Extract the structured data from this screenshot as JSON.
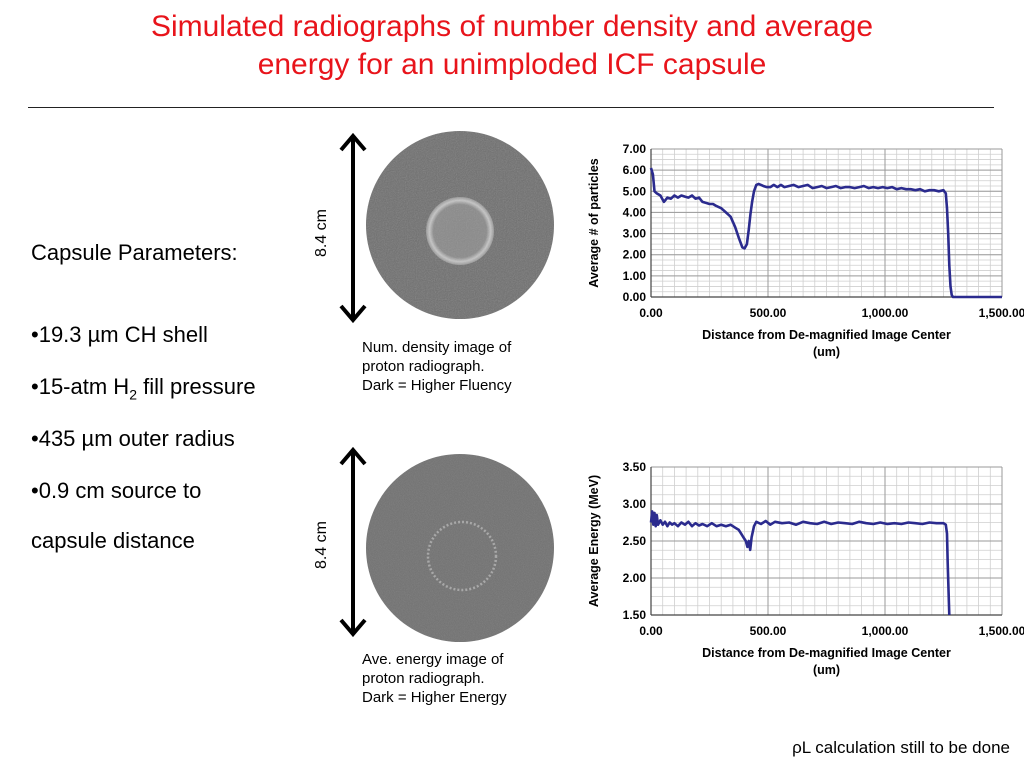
{
  "slide": {
    "title_line1": "Simulated radiographs of number density and average",
    "title_line2": "energy for an unimploded ICF capsule",
    "footer_note": "ρL calculation still to be done",
    "colors": {
      "title": "#e8141b",
      "series": "#2b2b8e"
    }
  },
  "params": {
    "heading": "Capsule Parameters:",
    "item1": "•19.3 µm CH shell",
    "item2_pre": "•15-atm H",
    "item2_sub": "2",
    "item2_post": " fill pressure",
    "item3": "•435 µm outer radius",
    "item4_line1": "•0.9 cm source to",
    "item4_line2": "capsule distance"
  },
  "images": {
    "density": {
      "scale_label": "8.4 cm",
      "caption_line1": "Num. density image of",
      "caption_line2": "proton radiograph.",
      "caption_line3": "Dark = Higher Fluency"
    },
    "energy": {
      "scale_label": "8.4 cm",
      "caption_line1": "Ave. energy image of",
      "caption_line2": "proton radiograph.",
      "caption_line3": "Dark = Higher Energy"
    }
  },
  "chart_data": [
    {
      "type": "line",
      "title": "",
      "ylabel": "Average # of particles",
      "xlabel_line1": "Distance from De-magnified Image Center",
      "xlabel_line2": "(um)",
      "xlim": [
        0,
        1500
      ],
      "ylim": [
        0,
        7
      ],
      "xticks": [
        0,
        500,
        1000,
        1500
      ],
      "xtick_labels": [
        "0.00",
        "500.00",
        "1,000.00",
        "1,500.00"
      ],
      "yticks": [
        0,
        1,
        2,
        3,
        4,
        5,
        6,
        7
      ],
      "ytick_labels": [
        "0.00",
        "1.00",
        "2.00",
        "3.00",
        "4.00",
        "5.00",
        "6.00",
        "7.00"
      ],
      "grid": true,
      "series": [
        {
          "x": [
            0,
            8,
            15,
            25,
            40,
            55,
            70,
            85,
            100,
            115,
            130,
            145,
            160,
            175,
            190,
            205,
            220,
            235,
            250,
            265,
            280,
            300,
            320,
            340,
            360,
            375,
            390,
            400,
            410,
            418,
            425,
            432,
            440,
            450,
            460,
            470,
            480,
            495,
            510,
            525,
            540,
            555,
            570,
            590,
            610,
            630,
            650,
            670,
            690,
            710,
            730,
            750,
            770,
            790,
            810,
            830,
            850,
            870,
            890,
            910,
            930,
            950,
            970,
            990,
            1010,
            1030,
            1050,
            1070,
            1090,
            1110,
            1130,
            1150,
            1170,
            1190,
            1210,
            1230,
            1250,
            1260,
            1265,
            1270,
            1275,
            1280,
            1285,
            1290,
            1300,
            1350,
            1400,
            1450,
            1500
          ],
          "y": [
            6.1,
            5.8,
            5.0,
            4.9,
            4.8,
            4.5,
            4.7,
            4.65,
            4.8,
            4.7,
            4.8,
            4.75,
            4.7,
            4.8,
            4.65,
            4.7,
            4.5,
            4.45,
            4.4,
            4.4,
            4.3,
            4.2,
            4.0,
            3.8,
            3.3,
            2.8,
            2.35,
            2.3,
            2.5,
            3.2,
            3.9,
            4.5,
            5.0,
            5.3,
            5.35,
            5.3,
            5.25,
            5.2,
            5.2,
            5.3,
            5.2,
            5.3,
            5.2,
            5.25,
            5.3,
            5.2,
            5.25,
            5.3,
            5.15,
            5.2,
            5.25,
            5.15,
            5.2,
            5.25,
            5.15,
            5.2,
            5.2,
            5.15,
            5.2,
            5.25,
            5.15,
            5.2,
            5.15,
            5.2,
            5.15,
            5.2,
            5.1,
            5.15,
            5.1,
            5.1,
            5.05,
            5.1,
            5.0,
            5.05,
            5.05,
            5.0,
            5.05,
            4.9,
            4.2,
            3.0,
            1.5,
            0.5,
            0.1,
            0.0,
            0.0,
            0.0,
            0.0,
            0.0,
            0.0
          ]
        }
      ]
    },
    {
      "type": "line",
      "title": "",
      "ylabel": "Average Energy (MeV)",
      "xlabel_line1": "Distance from De-magnified Image Center",
      "xlabel_line2": "(um)",
      "xlim": [
        0,
        1500
      ],
      "ylim": [
        1.5,
        3.5
      ],
      "xticks": [
        0,
        500,
        1000,
        1500
      ],
      "xtick_labels": [
        "0.00",
        "500.00",
        "1,000.00",
        "1,500.00"
      ],
      "yticks": [
        1.5,
        2.0,
        2.5,
        3.0,
        3.5
      ],
      "ytick_labels": [
        "1.50",
        "2.00",
        "2.50",
        "3.00",
        "3.50"
      ],
      "grid": true,
      "series": [
        {
          "x": [
            0,
            5,
            10,
            15,
            20,
            25,
            30,
            40,
            50,
            60,
            70,
            80,
            90,
            100,
            115,
            130,
            145,
            160,
            175,
            190,
            205,
            220,
            240,
            260,
            280,
            300,
            320,
            340,
            360,
            375,
            385,
            395,
            405,
            412,
            418,
            424,
            430,
            440,
            450,
            470,
            490,
            510,
            530,
            560,
            590,
            620,
            650,
            680,
            710,
            740,
            770,
            800,
            830,
            860,
            890,
            920,
            950,
            980,
            1010,
            1040,
            1070,
            1100,
            1130,
            1160,
            1190,
            1220,
            1250,
            1260,
            1265,
            1268,
            1272,
            1275
          ],
          "y": [
            2.75,
            2.9,
            2.72,
            2.88,
            2.7,
            2.85,
            2.72,
            2.78,
            2.72,
            2.76,
            2.7,
            2.75,
            2.72,
            2.74,
            2.7,
            2.75,
            2.72,
            2.76,
            2.7,
            2.74,
            2.71,
            2.73,
            2.7,
            2.74,
            2.7,
            2.72,
            2.7,
            2.72,
            2.68,
            2.65,
            2.6,
            2.55,
            2.5,
            2.42,
            2.5,
            2.38,
            2.55,
            2.7,
            2.76,
            2.73,
            2.77,
            2.72,
            2.76,
            2.74,
            2.75,
            2.72,
            2.76,
            2.74,
            2.73,
            2.76,
            2.73,
            2.75,
            2.74,
            2.73,
            2.76,
            2.74,
            2.73,
            2.75,
            2.73,
            2.74,
            2.73,
            2.75,
            2.74,
            2.73,
            2.75,
            2.74,
            2.74,
            2.72,
            2.6,
            2.2,
            1.8,
            1.5
          ]
        }
      ]
    }
  ]
}
